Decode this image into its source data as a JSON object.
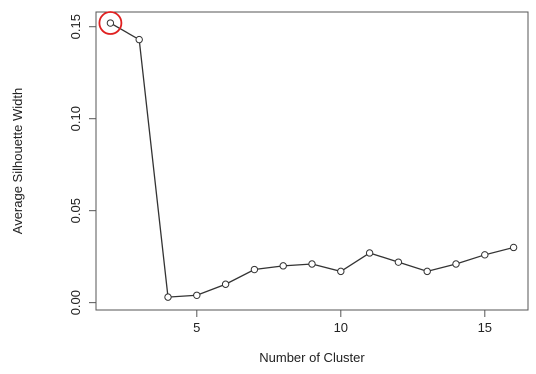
{
  "chart_data": {
    "type": "line",
    "title": "",
    "xlabel": "Number of Cluster",
    "ylabel": "Average Silhouette Width",
    "xlim": [
      1.5,
      16.5
    ],
    "ylim": [
      -0.004,
      0.158
    ],
    "x_ticks": [
      5,
      10,
      15
    ],
    "x_tick_labels": [
      "5",
      "10",
      "15"
    ],
    "y_ticks": [
      0.0,
      0.05,
      0.1,
      0.15
    ],
    "y_tick_labels": [
      "0.00",
      "0.05",
      "0.10",
      "0.15"
    ],
    "series": [
      {
        "x": [
          2,
          3,
          4,
          5,
          6,
          7,
          8,
          9,
          10,
          11,
          12,
          13,
          14,
          15,
          16
        ],
        "y": [
          0.152,
          0.143,
          0.003,
          0.004,
          0.01,
          0.018,
          0.02,
          0.021,
          0.017,
          0.027,
          0.022,
          0.017,
          0.021,
          0.026,
          0.03
        ]
      }
    ],
    "highlight": {
      "x": 2,
      "y": 0.152,
      "color": "#e02020"
    },
    "line_color": "#333333",
    "grid": false,
    "legend": "none"
  }
}
